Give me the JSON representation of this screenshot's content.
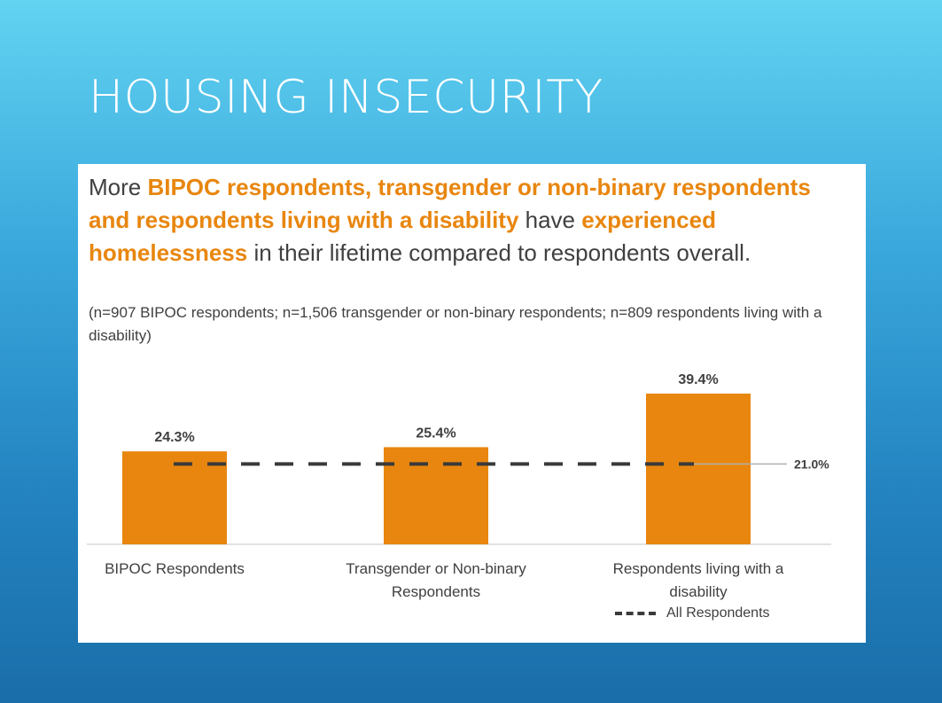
{
  "slide": {
    "title": "HOUSING INSECURITY"
  },
  "headline": {
    "part1": "More ",
    "highlight1": "BIPOC respondents, transgender or non-binary respondents and respondents living with a disability",
    "part2": " have ",
    "highlight2": "experienced homelessness",
    "part3": " in their lifetime compared to respondents overall."
  },
  "subnote": "(n=907 BIPOC respondents; n=1,506 transgender or non-binary respondents; n=809 respondents living with a disability)",
  "legend": {
    "label": "All Respondents"
  },
  "colors": {
    "bar": "#e8860f",
    "highlight": "#e8860f",
    "reference_line": "#3a3a3a",
    "text": "#404040"
  },
  "chart_data": {
    "type": "bar",
    "categories": [
      "BIPOC Respondents",
      "Transgender or Non-binary Respondents",
      "Respondents living with a disability"
    ],
    "category_lines": [
      [
        "BIPOC Respondents"
      ],
      [
        "Transgender or Non-binary",
        "Respondents"
      ],
      [
        "Respondents living with a",
        "disability"
      ]
    ],
    "values": [
      24.3,
      25.4,
      39.4
    ],
    "value_labels": [
      "24.3%",
      "25.4%",
      "39.4%"
    ],
    "reference": {
      "name": "All Respondents",
      "value": 21.0,
      "label": "21.0%",
      "style": "dashed"
    },
    "ylim": [
      0,
      40
    ],
    "grid": false,
    "legend_position": "bottom-right"
  }
}
